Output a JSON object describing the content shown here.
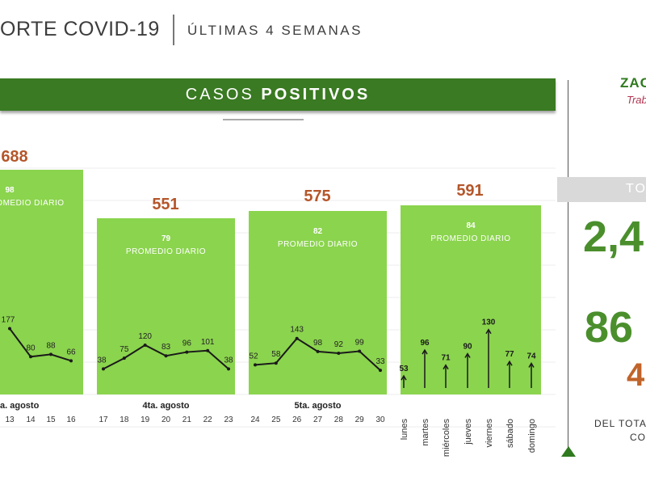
{
  "header": {
    "title": "ORTE COVID-19",
    "subtitle": "ÚLTIMAS 4 SEMANAS"
  },
  "banner": {
    "label_light": "CASOS ",
    "label_bold": "POSITIVOS"
  },
  "right_panel": {
    "logo": "ZAC",
    "logo_sub": "Trab",
    "total_label": "TO",
    "big_number_1": "2,4",
    "big_number_2": "86",
    "big_number_3": "4",
    "footnote_1": "DEL TOTA",
    "footnote_2": "CO"
  },
  "colors": {
    "panel_green": "#8bd44e",
    "banner_green": "#3a7a22",
    "total_orange": "#b5562a",
    "line": "#1a1a1a"
  },
  "chart_data": {
    "type": "line",
    "title": "CASOS POSITIVOS",
    "weeks": [
      {
        "total": "688",
        "average": "98",
        "average_label": "PROMEDIO DIARIO",
        "week_label": "a. agosto",
        "x": [
          "13",
          "14",
          "15",
          "16"
        ],
        "values": [
          177,
          80,
          88,
          66
        ]
      },
      {
        "total": "551",
        "average": "79",
        "average_label": "PROMEDIO DIARIO",
        "week_label": "4ta. agosto",
        "x": [
          "17",
          "18",
          "19",
          "20",
          "21",
          "22",
          "23"
        ],
        "values": [
          38,
          75,
          120,
          83,
          96,
          101,
          38
        ]
      },
      {
        "total": "575",
        "average": "82",
        "average_label": "PROMEDIO DIARIO",
        "week_label": "5ta. agosto",
        "x": [
          "24",
          "25",
          "26",
          "27",
          "28",
          "29",
          "30"
        ],
        "values": [
          52,
          58,
          143,
          98,
          92,
          99,
          33
        ]
      },
      {
        "total": "591",
        "average": "84",
        "average_label": "PROMEDIO DIARIO",
        "week_label": "",
        "type": "stem",
        "x": [
          "lunes",
          "martes",
          "miércoles",
          "jueves",
          "viernes",
          "sábado",
          "domingo"
        ],
        "values": [
          53,
          96,
          71,
          90,
          130,
          77,
          74
        ]
      }
    ]
  }
}
